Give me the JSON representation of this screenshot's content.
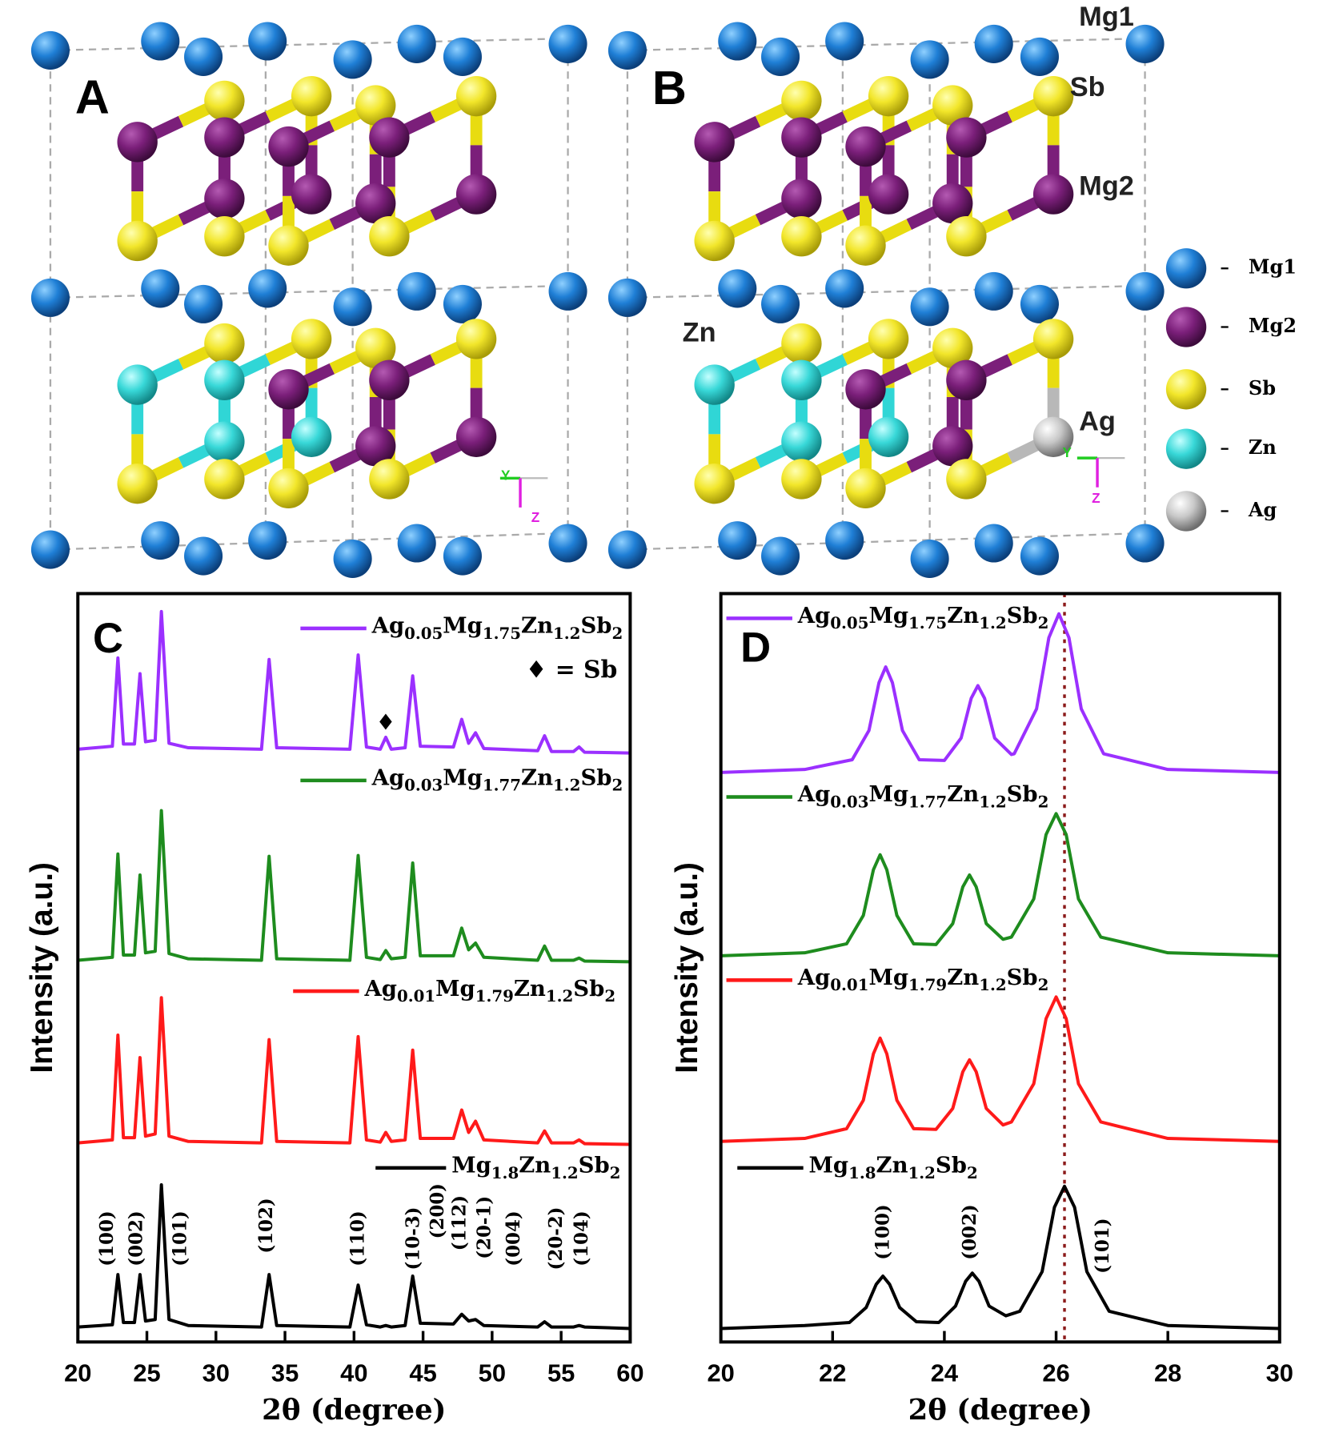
{
  "panel_a": {
    "label": "A",
    "axis_labels": [
      "Y",
      "Z"
    ]
  },
  "panel_b": {
    "label": "B",
    "atom_labels": [
      "Mg1",
      "Sb",
      "Mg2",
      "Zn",
      "Ag"
    ],
    "axis_labels": [
      "Y",
      "Z"
    ]
  },
  "structure_legend": [
    "Mg1",
    "Mg2",
    "Sb",
    "Zn",
    "Ag"
  ],
  "chart_data": [
    {
      "type": "line",
      "panel_label": "C",
      "xlabel": "2θ (degree)",
      "ylabel": "Intensity (a.u.)",
      "xlim": [
        20,
        60
      ],
      "xticks": [
        20,
        25,
        30,
        35,
        40,
        45,
        50,
        55,
        60
      ],
      "ylim": [
        0,
        100
      ],
      "x": [
        20,
        22.5,
        22.9,
        23.3,
        24.1,
        24.5,
        24.9,
        25.6,
        26.05,
        26.6,
        28,
        33.3,
        33.85,
        34.4,
        39.7,
        40.3,
        40.9,
        41.9,
        42.3,
        42.7,
        43.7,
        44.25,
        44.8,
        47.2,
        47.8,
        48.3,
        48.8,
        49.4,
        53.3,
        53.8,
        54.3,
        55.9,
        56.3,
        56.7,
        60
      ],
      "series": [
        {
          "name": "Ag0.05Mg1.75Zn1.2Sb2",
          "color": "#9b30ff",
          "values": [
            79.2,
            79.6,
            91.4,
            79.9,
            79.9,
            89.3,
            80.2,
            80.4,
            97.6,
            80,
            79.4,
            79.2,
            91.2,
            79.4,
            79.2,
            91.8,
            79.5,
            79.2,
            80.8,
            79.2,
            79.4,
            89,
            79.6,
            79.5,
            83.2,
            80,
            81.4,
            79.3,
            79,
            81,
            78.9,
            78.9,
            79.5,
            78.8,
            78.7
          ]
        },
        {
          "name": "Ag0.03Mg1.77Zn1.2Sb2",
          "color": "#1e8c1e",
          "values": [
            51,
            51.4,
            65.2,
            51.7,
            51.7,
            62.4,
            52,
            52.2,
            71,
            51.9,
            51.2,
            51,
            64.9,
            51.2,
            51,
            65,
            51.4,
            51.1,
            52.3,
            51.2,
            51.4,
            64,
            51.6,
            51.6,
            55.3,
            52.4,
            53.3,
            51.4,
            51,
            52.9,
            51,
            51,
            51.3,
            50.9,
            50.8
          ]
        },
        {
          "name": "Ag0.01Mg1.79Zn1.2Sb2",
          "color": "#ff1a1a",
          "values": [
            26.6,
            27,
            41,
            27.3,
            27.3,
            38,
            27.5,
            27.8,
            46,
            27.5,
            26.8,
            26.6,
            40.4,
            26.8,
            26.6,
            40.8,
            27,
            26.7,
            28,
            26.8,
            27,
            39,
            27.2,
            27.2,
            31,
            28,
            29.5,
            27,
            26.6,
            28.2,
            26.6,
            26.6,
            27,
            26.5,
            26.4
          ]
        },
        {
          "name": "Mg1.8Zn1.2Sb2",
          "color": "#000000",
          "values": [
            2,
            2.3,
            9,
            2.6,
            2.6,
            9,
            2.8,
            3,
            21,
            3,
            2.2,
            2,
            9,
            2.2,
            2,
            7.6,
            2.3,
            2,
            2.2,
            2,
            2.2,
            8.8,
            2.5,
            2.4,
            3.7,
            2.8,
            3,
            2.2,
            2,
            2.7,
            2,
            2,
            2.2,
            2,
            1.8
          ]
        }
      ],
      "impurity_marker": {
        "label": "♦",
        "x": 42.3,
        "y": 82.6
      },
      "annotation": "♦ = Sb",
      "peak_labels": [
        "(100)",
        "(002)",
        "(101)",
        "(102)",
        "(110)",
        "(10-3)",
        "(200)",
        "(112)",
        "(20-1)",
        "(004)",
        "(20-2)",
        "(104)"
      ]
    },
    {
      "type": "line",
      "panel_label": "D",
      "xlabel": "2θ (degree)",
      "ylabel": "Intensity (a.u.)",
      "xlim": [
        20,
        30
      ],
      "xticks": [
        20,
        22,
        24,
        26,
        28,
        30
      ],
      "ylim": [
        0,
        100
      ],
      "series": [
        {
          "name": "Ag0.05Mg1.75Zn1.2Sb2",
          "color": "#9b30ff",
          "x": [
            20,
            21.5,
            22.35,
            22.65,
            22.83,
            22.95,
            23.07,
            23.25,
            23.55,
            24,
            24.3,
            24.48,
            24.6,
            24.72,
            24.9,
            25.2,
            25.25,
            25.65,
            25.87,
            26.05,
            26.23,
            26.45,
            26.85,
            28,
            30
          ],
          "values": [
            76.1,
            76.5,
            77.8,
            81.7,
            88.1,
            90.2,
            88.1,
            81.7,
            77.8,
            77.7,
            80.7,
            86,
            87.7,
            86,
            80.7,
            78.5,
            78.6,
            84.6,
            94.1,
            97.3,
            94.1,
            84.6,
            78.6,
            76.5,
            76.1
          ]
        },
        {
          "name": "Ag0.03Mg1.77Zn1.2Sb2",
          "color": "#1e8c1e",
          "x": [
            20,
            21.5,
            22.25,
            22.55,
            22.73,
            22.85,
            22.97,
            23.15,
            23.45,
            23.85,
            24.15,
            24.33,
            24.45,
            24.57,
            24.75,
            25.05,
            25.2,
            25.6,
            25.82,
            26,
            26.18,
            26.4,
            26.8,
            28,
            30
          ],
          "values": [
            51.6,
            52,
            53.2,
            57,
            63.1,
            65.1,
            63.1,
            57,
            53.2,
            53.1,
            55.9,
            60.8,
            62.4,
            60.8,
            55.9,
            53.8,
            54.1,
            59.2,
            67.8,
            70.6,
            67.8,
            59.2,
            54.1,
            52,
            51.6
          ]
        },
        {
          "name": "Ag0.01Mg1.79Zn1.2Sb2",
          "color": "#ff1a1a",
          "x": [
            20,
            21.5,
            22.25,
            22.55,
            22.73,
            22.85,
            22.97,
            23.15,
            23.45,
            23.85,
            24.15,
            24.33,
            24.45,
            24.57,
            24.75,
            25.05,
            25.2,
            25.6,
            25.82,
            26,
            26.18,
            26.4,
            26.8,
            28,
            30
          ],
          "values": [
            26.8,
            27.2,
            28.5,
            32.3,
            38.5,
            40.6,
            38.5,
            32.3,
            28.5,
            28.4,
            31.2,
            36.1,
            37.7,
            36.1,
            31.2,
            29,
            29.4,
            34.5,
            43.2,
            46.1,
            43.2,
            34.5,
            29.4,
            27.2,
            26.8
          ]
        },
        {
          "name": "Mg1.8Zn1.2Sb2",
          "color": "#000000",
          "x": [
            20,
            21.5,
            22.3,
            22.6,
            22.78,
            22.9,
            23.02,
            23.2,
            23.5,
            23.9,
            24.2,
            24.38,
            24.5,
            24.62,
            24.8,
            25.1,
            25.35,
            25.75,
            25.97,
            26.15,
            26.33,
            26.55,
            26.95,
            28,
            30
          ],
          "values": [
            1.8,
            2.2,
            2.6,
            4.6,
            7.7,
            8.8,
            7.7,
            4.6,
            2.7,
            2.6,
            4.8,
            8.1,
            9.2,
            8.1,
            4.8,
            3.5,
            4.1,
            9.4,
            18,
            20.8,
            18,
            9.4,
            4.1,
            2.2,
            1.8
          ]
        }
      ],
      "reference_line_x": 26.15,
      "peak_labels": [
        "(100)",
        "(002)",
        "(101)"
      ]
    }
  ]
}
